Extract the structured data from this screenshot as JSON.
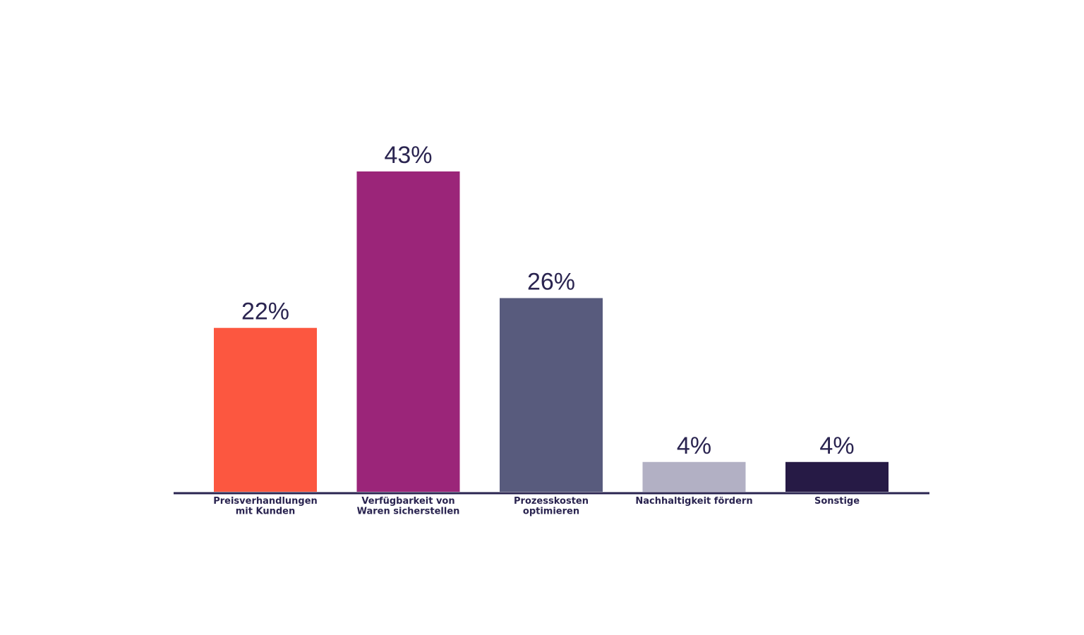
{
  "chart_data": {
    "type": "bar",
    "title": "",
    "xlabel": "",
    "ylabel": "",
    "ylim": [
      0,
      43
    ],
    "grid": false,
    "categories": [
      [
        "Preisverhandlungen",
        "mit Kunden"
      ],
      [
        "Verfügbarkeit von",
        "Waren sicherstellen"
      ],
      [
        "Prozesskosten",
        "optimieren"
      ],
      [
        "Nachhaltigkeit fördern"
      ],
      [
        "Sonstige"
      ]
    ],
    "values": [
      22,
      43,
      26,
      4,
      4
    ],
    "value_labels": [
      "22%",
      "43%",
      "26%",
      "4%",
      "4%"
    ],
    "colors": [
      "#fc5740",
      "#9b2579",
      "#585b7d",
      "#b2b0c4",
      "#261a45"
    ],
    "axis_color": "#2a2450"
  }
}
